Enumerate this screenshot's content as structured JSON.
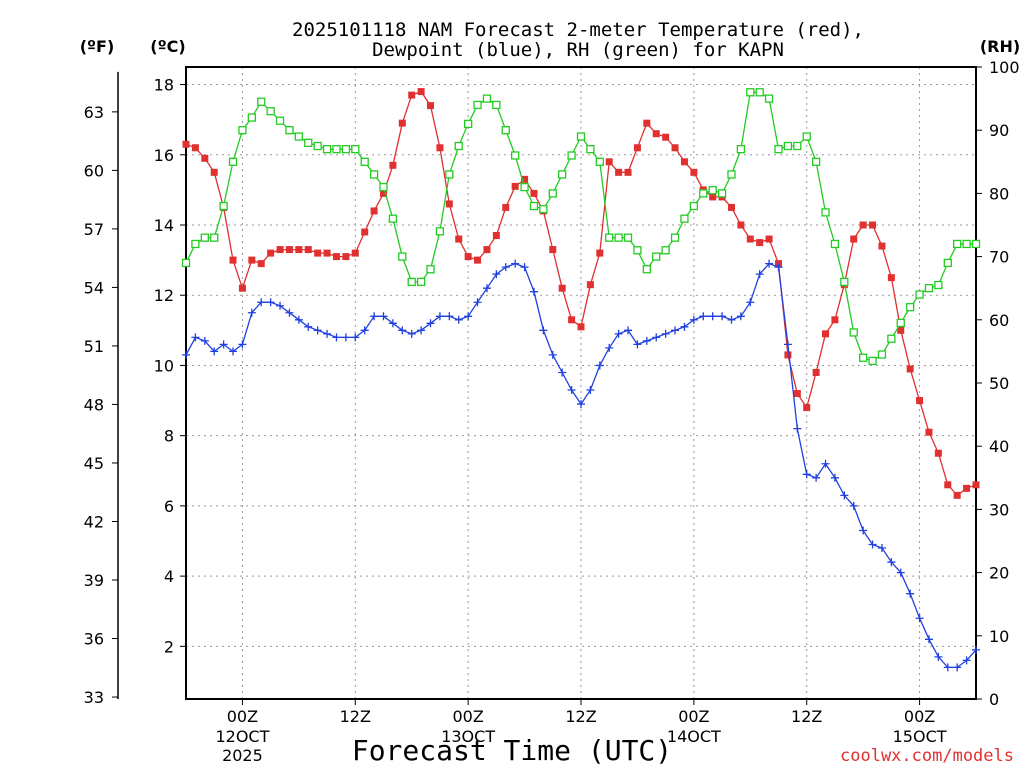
{
  "chart_data": {
    "type": "line",
    "title_line1": "2025101118 NAM Forecast 2-meter Temperature (red),",
    "title_line2": "Dewpoint (blue), RH (green) for KAPN",
    "xlabel": "Forecast Time (UTC)",
    "credit": "coolwx.com/models",
    "left_unit_f": "(ºF)",
    "left_unit_c": "(ºC)",
    "right_unit": "(RH)",
    "ylim_c": [
      0.5,
      18.5
    ],
    "ylim_rh": [
      0,
      100
    ],
    "xlim_hours": [
      -6,
      78
    ],
    "ticks_c": [
      "2",
      "4",
      "6",
      "8",
      "10",
      "12",
      "14",
      "16",
      "18"
    ],
    "ticks_f": [
      "33",
      "36",
      "39",
      "42",
      "45",
      "48",
      "51",
      "54",
      "57",
      "60",
      "63"
    ],
    "ticks_rh": [
      "0",
      "10",
      "20",
      "30",
      "40",
      "50",
      "60",
      "70",
      "80",
      "90",
      "100"
    ],
    "x_ticks": [
      {
        "hour": 0,
        "label": "00Z",
        "date": "12OCT",
        "year": "2025"
      },
      {
        "hour": 12,
        "label": "12Z",
        "date": "",
        "year": ""
      },
      {
        "hour": 24,
        "label": "00Z",
        "date": "13OCT",
        "year": ""
      },
      {
        "hour": 36,
        "label": "12Z",
        "date": "",
        "year": ""
      },
      {
        "hour": 48,
        "label": "00Z",
        "date": "14OCT",
        "year": ""
      },
      {
        "hour": 60,
        "label": "12Z",
        "date": "",
        "year": ""
      },
      {
        "hour": 72,
        "label": "00Z",
        "date": "15OCT",
        "year": ""
      }
    ],
    "series": [
      {
        "name": "Temperature",
        "units": "C",
        "color": "#e03030",
        "marker": "filled-square",
        "points": [
          [
            -6,
            16.3
          ],
          [
            -5,
            16.2
          ],
          [
            -4,
            15.9
          ],
          [
            -3,
            15.5
          ],
          [
            -2,
            14.5
          ],
          [
            -1,
            13.0
          ],
          [
            0,
            12.2
          ],
          [
            1,
            13.0
          ],
          [
            2,
            12.9
          ],
          [
            3,
            13.2
          ],
          [
            4,
            13.3
          ],
          [
            5,
            13.3
          ],
          [
            6,
            13.3
          ],
          [
            7,
            13.3
          ],
          [
            8,
            13.2
          ],
          [
            9,
            13.2
          ],
          [
            10,
            13.1
          ],
          [
            11,
            13.1
          ],
          [
            12,
            13.2
          ],
          [
            13,
            13.8
          ],
          [
            14,
            14.4
          ],
          [
            15,
            14.9
          ],
          [
            16,
            15.7
          ],
          [
            17,
            16.9
          ],
          [
            18,
            17.7
          ],
          [
            19,
            17.8
          ],
          [
            20,
            17.4
          ],
          [
            21,
            16.2
          ],
          [
            22,
            14.6
          ],
          [
            23,
            13.6
          ],
          [
            24,
            13.1
          ],
          [
            25,
            13.0
          ],
          [
            26,
            13.3
          ],
          [
            27,
            13.7
          ],
          [
            28,
            14.5
          ],
          [
            29,
            15.1
          ],
          [
            30,
            15.3
          ],
          [
            31,
            14.9
          ],
          [
            32,
            14.4
          ],
          [
            33,
            13.3
          ],
          [
            34,
            12.2
          ],
          [
            35,
            11.3
          ],
          [
            36,
            11.1
          ],
          [
            37,
            12.3
          ],
          [
            38,
            13.2
          ],
          [
            39,
            15.8
          ],
          [
            40,
            15.5
          ],
          [
            41,
            15.5
          ],
          [
            42,
            16.2
          ],
          [
            43,
            16.9
          ],
          [
            44,
            16.6
          ],
          [
            45,
            16.5
          ],
          [
            46,
            16.2
          ],
          [
            47,
            15.8
          ],
          [
            48,
            15.5
          ],
          [
            49,
            15.0
          ],
          [
            50,
            14.8
          ],
          [
            51,
            14.8
          ],
          [
            52,
            14.5
          ],
          [
            53,
            14.0
          ],
          [
            54,
            13.6
          ],
          [
            55,
            13.5
          ],
          [
            56,
            13.6
          ],
          [
            57,
            12.9
          ],
          [
            58,
            10.3
          ],
          [
            59,
            9.2
          ],
          [
            60,
            8.8
          ],
          [
            61,
            9.8
          ],
          [
            62,
            10.9
          ],
          [
            63,
            11.3
          ],
          [
            64,
            12.3
          ],
          [
            65,
            13.6
          ],
          [
            66,
            14.0
          ],
          [
            67,
            14.0
          ],
          [
            68,
            13.4
          ],
          [
            69,
            12.5
          ],
          [
            70,
            11.0
          ],
          [
            71,
            9.9
          ],
          [
            72,
            9.0
          ],
          [
            73,
            8.1
          ],
          [
            74,
            7.5
          ],
          [
            75,
            6.6
          ],
          [
            76,
            6.3
          ],
          [
            77,
            6.5
          ],
          [
            78,
            6.6
          ]
        ]
      },
      {
        "name": "Dewpoint",
        "units": "C",
        "color": "#2040e0",
        "marker": "plus",
        "points": [
          [
            -6,
            10.3
          ],
          [
            -5,
            10.8
          ],
          [
            -4,
            10.7
          ],
          [
            -3,
            10.4
          ],
          [
            -2,
            10.6
          ],
          [
            -1,
            10.4
          ],
          [
            0,
            10.6
          ],
          [
            1,
            11.5
          ],
          [
            2,
            11.8
          ],
          [
            3,
            11.8
          ],
          [
            4,
            11.7
          ],
          [
            5,
            11.5
          ],
          [
            6,
            11.3
          ],
          [
            7,
            11.1
          ],
          [
            8,
            11.0
          ],
          [
            9,
            10.9
          ],
          [
            10,
            10.8
          ],
          [
            11,
            10.8
          ],
          [
            12,
            10.8
          ],
          [
            13,
            11.0
          ],
          [
            14,
            11.4
          ],
          [
            15,
            11.4
          ],
          [
            16,
            11.2
          ],
          [
            17,
            11.0
          ],
          [
            18,
            10.9
          ],
          [
            19,
            11.0
          ],
          [
            20,
            11.2
          ],
          [
            21,
            11.4
          ],
          [
            22,
            11.4
          ],
          [
            23,
            11.3
          ],
          [
            24,
            11.4
          ],
          [
            25,
            11.8
          ],
          [
            26,
            12.2
          ],
          [
            27,
            12.6
          ],
          [
            28,
            12.8
          ],
          [
            29,
            12.9
          ],
          [
            30,
            12.8
          ],
          [
            31,
            12.1
          ],
          [
            32,
            11.0
          ],
          [
            33,
            10.3
          ],
          [
            34,
            9.8
          ],
          [
            35,
            9.3
          ],
          [
            36,
            8.9
          ],
          [
            37,
            9.3
          ],
          [
            38,
            10.0
          ],
          [
            39,
            10.5
          ],
          [
            40,
            10.9
          ],
          [
            41,
            11.0
          ],
          [
            42,
            10.6
          ],
          [
            43,
            10.7
          ],
          [
            44,
            10.8
          ],
          [
            45,
            10.9
          ],
          [
            46,
            11.0
          ],
          [
            47,
            11.1
          ],
          [
            48,
            11.3
          ],
          [
            49,
            11.4
          ],
          [
            50,
            11.4
          ],
          [
            51,
            11.4
          ],
          [
            52,
            11.3
          ],
          [
            53,
            11.4
          ],
          [
            54,
            11.8
          ],
          [
            55,
            12.6
          ],
          [
            56,
            12.9
          ],
          [
            57,
            12.8
          ],
          [
            58,
            10.6
          ],
          [
            59,
            8.2
          ],
          [
            60,
            6.9
          ],
          [
            61,
            6.8
          ],
          [
            62,
            7.2
          ],
          [
            63,
            6.8
          ],
          [
            64,
            6.3
          ],
          [
            65,
            6.0
          ],
          [
            66,
            5.3
          ],
          [
            67,
            4.9
          ],
          [
            68,
            4.8
          ],
          [
            69,
            4.4
          ],
          [
            70,
            4.1
          ],
          [
            71,
            3.5
          ],
          [
            72,
            2.8
          ],
          [
            73,
            2.2
          ],
          [
            74,
            1.7
          ],
          [
            75,
            1.4
          ],
          [
            76,
            1.4
          ],
          [
            77,
            1.6
          ],
          [
            78,
            1.9
          ]
        ]
      },
      {
        "name": "RH",
        "units": "%",
        "color": "#22cc22",
        "marker": "open-square",
        "points": [
          [
            -6,
            69
          ],
          [
            -5,
            72
          ],
          [
            -4,
            73
          ],
          [
            -3,
            73
          ],
          [
            -2,
            78
          ],
          [
            -1,
            85
          ],
          [
            0,
            90
          ],
          [
            1,
            92
          ],
          [
            2,
            94.5
          ],
          [
            3,
            93
          ],
          [
            4,
            91.5
          ],
          [
            5,
            90
          ],
          [
            6,
            89
          ],
          [
            7,
            88
          ],
          [
            8,
            87.5
          ],
          [
            9,
            87
          ],
          [
            10,
            87
          ],
          [
            11,
            87
          ],
          [
            12,
            87
          ],
          [
            13,
            85
          ],
          [
            14,
            83
          ],
          [
            15,
            81
          ],
          [
            16,
            76
          ],
          [
            17,
            70
          ],
          [
            18,
            66
          ],
          [
            19,
            66
          ],
          [
            20,
            68
          ],
          [
            21,
            74
          ],
          [
            22,
            83
          ],
          [
            23,
            87.5
          ],
          [
            24,
            91
          ],
          [
            25,
            94
          ],
          [
            26,
            95
          ],
          [
            27,
            94
          ],
          [
            28,
            90
          ],
          [
            29,
            86
          ],
          [
            30,
            81
          ],
          [
            31,
            78
          ],
          [
            32,
            77.5
          ],
          [
            33,
            80
          ],
          [
            34,
            83
          ],
          [
            35,
            86
          ],
          [
            36,
            89
          ],
          [
            37,
            87
          ],
          [
            38,
            85
          ],
          [
            39,
            73
          ],
          [
            40,
            73
          ],
          [
            41,
            73
          ],
          [
            42,
            71
          ],
          [
            43,
            68
          ],
          [
            44,
            70
          ],
          [
            45,
            71
          ],
          [
            46,
            73
          ],
          [
            47,
            76
          ],
          [
            48,
            78
          ],
          [
            49,
            80
          ],
          [
            50,
            80.5
          ],
          [
            51,
            80
          ],
          [
            52,
            83
          ],
          [
            53,
            87
          ],
          [
            54,
            96
          ],
          [
            55,
            96
          ],
          [
            56,
            95
          ],
          [
            57,
            87
          ],
          [
            58,
            87.5
          ],
          [
            59,
            87.5
          ],
          [
            60,
            89
          ],
          [
            61,
            85
          ],
          [
            62,
            77
          ],
          [
            63,
            72
          ],
          [
            64,
            66
          ],
          [
            65,
            58
          ],
          [
            66,
            54
          ],
          [
            67,
            53.5
          ],
          [
            68,
            54.5
          ],
          [
            69,
            57
          ],
          [
            70,
            59.5
          ],
          [
            71,
            62
          ],
          [
            72,
            64
          ],
          [
            73,
            65
          ],
          [
            74,
            65.5
          ],
          [
            75,
            69
          ],
          [
            76,
            72
          ],
          [
            77,
            72
          ],
          [
            78,
            72
          ]
        ]
      }
    ]
  }
}
